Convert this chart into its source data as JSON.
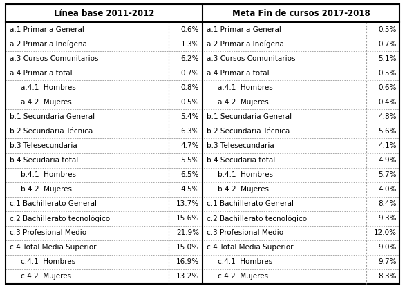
{
  "header_left": "Línea base 2011-2012",
  "header_right": "Meta Fin de cursos 2017-2018",
  "rows": [
    {
      "label": "a.1 Primaria General",
      "val_left": "0.6%",
      "val_right": "0.5%",
      "indent": false
    },
    {
      "label": "a.2 Primaria Indígena",
      "val_left": "1.3%",
      "val_right": "0.7%",
      "indent": false
    },
    {
      "label": "a.3 Cursos Comunitarios",
      "val_left": "6.2%",
      "val_right": "5.1%",
      "indent": false
    },
    {
      "label": "a.4 Primaria total",
      "val_left": "0.7%",
      "val_right": "0.5%",
      "indent": false
    },
    {
      "label": "a.4.1  Hombres",
      "val_left": "0.8%",
      "val_right": "0.6%",
      "indent": true
    },
    {
      "label": "a.4.2  Mujeres",
      "val_left": "0.5%",
      "val_right": "0.4%",
      "indent": true
    },
    {
      "label": "b.1 Secundaria General",
      "val_left": "5.4%",
      "val_right": "4.8%",
      "indent": false
    },
    {
      "label": "b.2 Secundaria Técnica",
      "val_left": "6.3%",
      "val_right": "5.6%",
      "indent": false
    },
    {
      "label": "b.3 Telesecundaria",
      "val_left": "4.7%",
      "val_right": "4.1%",
      "indent": false
    },
    {
      "label": "b.4 Secudaria total",
      "val_left": "5.5%",
      "val_right": "4.9%",
      "indent": false
    },
    {
      "label": "b.4.1  Hombres",
      "val_left": "6.5%",
      "val_right": "5.7%",
      "indent": true
    },
    {
      "label": "b.4.2  Mujeres",
      "val_left": "4.5%",
      "val_right": "4.0%",
      "indent": true
    },
    {
      "label": "c.1 Bachillerato General",
      "val_left": "13.7%",
      "val_right": "8.4%",
      "indent": false
    },
    {
      "label": "c.2 Bachillerato tecnológico",
      "val_left": "15.6%",
      "val_right": "9.3%",
      "indent": false
    },
    {
      "label": "c.3 Profesional Medio",
      "val_left": "21.9%",
      "val_right": "12.0%",
      "indent": false
    },
    {
      "label": "c.4 Total Media Superior",
      "val_left": "15.0%",
      "val_right": "9.0%",
      "indent": false
    },
    {
      "label": "c.4.1  Hombres",
      "val_left": "16.9%",
      "val_right": "9.7%",
      "indent": true
    },
    {
      "label": "c.4.2  Mujeres",
      "val_left": "13.2%",
      "val_right": "8.3%",
      "indent": true
    }
  ],
  "outer_color": "#000000",
  "grid_color": "#999999",
  "bg_color": "#FFFFFF",
  "text_color": "#000000",
  "header_fontsize": 8.5,
  "cell_fontsize": 7.5,
  "fig_width": 5.86,
  "fig_height": 4.17,
  "dpi": 100
}
